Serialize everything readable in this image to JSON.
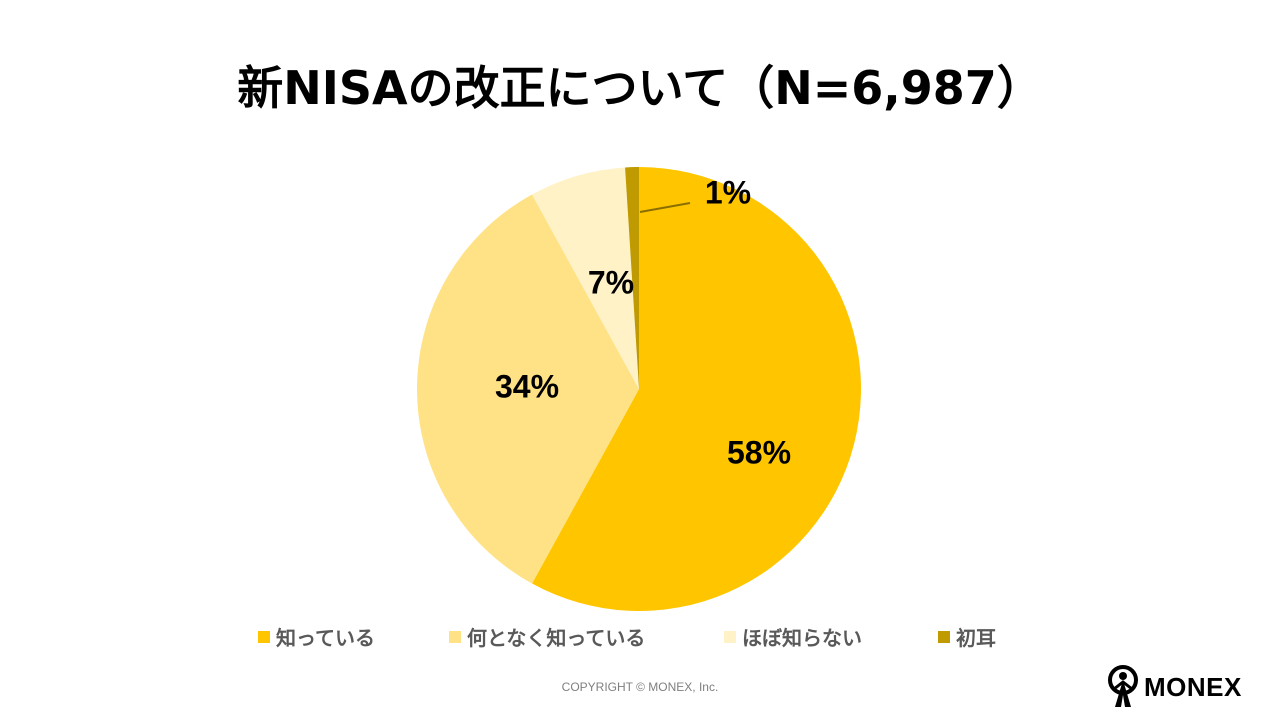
{
  "title": "新NISAの改正について（N=6,987）",
  "chart_data": {
    "type": "pie",
    "title": "新NISAの改正について（N=6,987）",
    "n": 6987,
    "slices": [
      {
        "label": "知っている",
        "value": 58,
        "display": "58%",
        "color": "#FFC600"
      },
      {
        "label": "何となく知っている",
        "value": 34,
        "display": "34%",
        "color": "#FFE285"
      },
      {
        "label": "ほぼ知らない",
        "value": 7,
        "display": "7%",
        "color": "#FFF2C7"
      },
      {
        "label": "初耳",
        "value": 1,
        "display": "1%",
        "color": "#BF9A00"
      }
    ],
    "start_angle_deg": 0,
    "direction": "clockwise",
    "legend_position": "bottom"
  },
  "copyright": "COPYRIGHT © MONEX, Inc.",
  "logo": {
    "text": "MONEX"
  }
}
